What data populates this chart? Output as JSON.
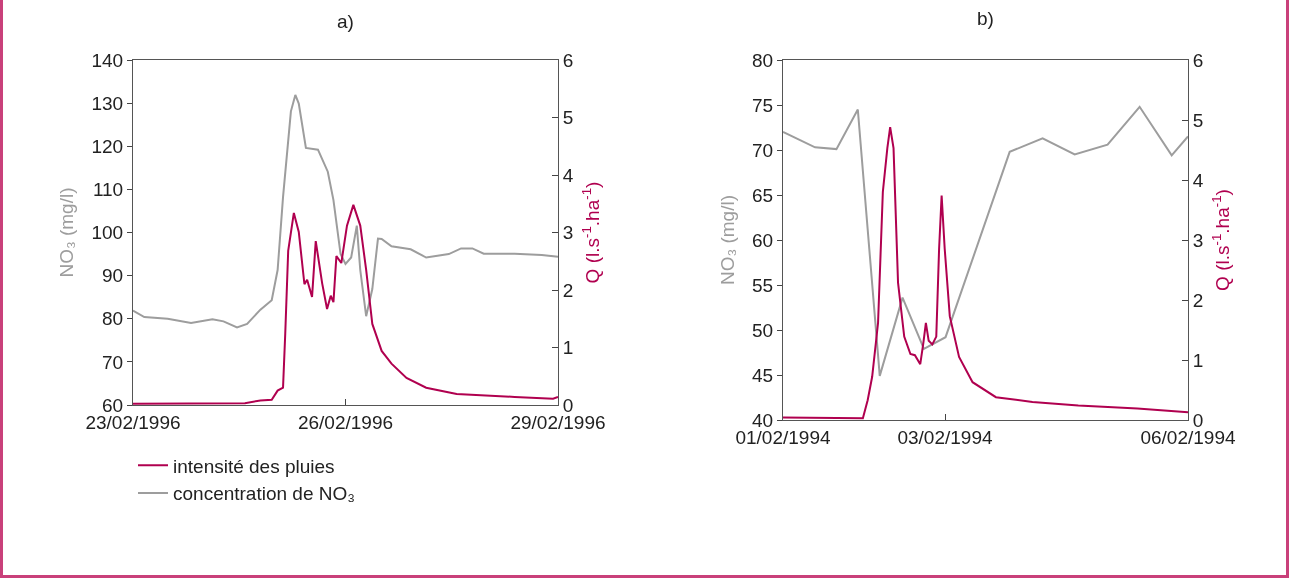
{
  "chart_data": [
    {
      "type": "line",
      "title": "a)",
      "ylabel": "NO₃ (mg/l)",
      "y2label": "Q (l.s$^{-1}$.ha$^{-1}$)",
      "legend": "bottom left",
      "grid": false,
      "marker": "none",
      "line_style": "solid",
      "xlim": [
        "1996-02-23",
        "1996-02-29"
      ],
      "xticks": [
        {
          "value": "1996-02-23",
          "label": "23/02/1996"
        },
        {
          "value": "1996-02-26",
          "label": "26/02/1996"
        },
        {
          "value": "1996-02-29",
          "label": "29/02/1996"
        }
      ],
      "ylim": [
        60,
        140
      ],
      "yticks": [
        60,
        70,
        80,
        90,
        100,
        110,
        120,
        130,
        140
      ],
      "y2lim": [
        0,
        6
      ],
      "y2ticks": [
        0,
        1,
        2,
        3,
        4,
        5,
        6
      ],
      "series": [
        {
          "name": "intensité des pluies",
          "color": "#b0004f",
          "axis": "y2",
          "x": [
            "1996-02-23T00:00",
            "1996-02-24T13:55",
            "1996-02-24T19:10",
            "1996-02-24T23:00",
            "1996-02-25T01:00",
            "1996-02-25T02:50",
            "1996-02-25T03:35",
            "1996-02-25T04:35",
            "1996-02-25T06:30",
            "1996-02-25T08:10",
            "1996-02-25T10:05",
            "1996-02-25T11:00",
            "1996-02-25T12:40",
            "1996-02-25T13:55",
            "1996-02-25T16:05",
            "1996-02-25T17:45",
            "1996-02-25T19:00",
            "1996-02-25T19:55",
            "1996-02-25T20:55",
            "1996-02-25T22:35",
            "1996-02-26T00:30",
            "1996-02-26T02:40",
            "1996-02-26T05:00",
            "1996-02-26T07:00",
            "1996-02-26T09:05",
            "1996-02-26T12:15",
            "1996-02-26T15:35",
            "1996-02-26T20:40",
            "1996-02-27T03:20",
            "1996-02-27T13:40",
            "1996-02-28T09:20",
            "1996-02-28T22:20",
            "1996-02-29T00:00"
          ],
          "values": [
            0.02,
            0.03,
            0.08,
            0.09,
            0.25,
            0.3,
            1.24,
            2.68,
            3.34,
            3.01,
            2.1,
            2.18,
            1.88,
            2.85,
            2.12,
            1.67,
            1.9,
            1.79,
            2.59,
            2.47,
            3.12,
            3.48,
            3.12,
            2.35,
            1.41,
            0.94,
            0.72,
            0.47,
            0.3,
            0.19,
            0.14,
            0.11,
            0.14
          ]
        },
        {
          "name": "concentration de NO₃",
          "color": "#9d9d9d",
          "x": [
            "1996-02-23T00:00",
            "1996-02-23T03:50",
            "1996-02-23T11:45",
            "1996-02-23T19:40",
            "1996-02-24T02:55",
            "1996-02-24T06:40",
            "1996-02-24T11:15",
            "1996-02-24T14:40",
            "1996-02-24T19:10",
            "1996-02-24T23:00",
            "1996-02-25T01:00",
            "1996-02-25T02:50",
            "1996-02-25T05:30",
            "1996-02-25T07:00",
            "1996-02-25T08:10",
            "1996-02-25T10:35",
            "1996-02-25T14:40",
            "1996-02-25T18:00",
            "1996-02-25T19:55",
            "1996-02-25T22:20",
            "1996-02-26T00:00",
            "1996-02-26T01:55",
            "1996-02-26T03:50",
            "1996-02-26T05:00",
            "1996-02-26T07:00",
            "1996-02-26T09:05",
            "1996-02-26T11:00",
            "1996-02-26T12:15",
            "1996-02-26T15:35",
            "1996-02-26T22:05",
            "1996-02-27T03:20",
            "1996-02-27T07:10",
            "1996-02-27T11:00",
            "1996-02-27T15:10",
            "1996-02-27T19:00",
            "1996-02-27T22:50",
            "1996-02-28T09:20",
            "1996-02-28T18:30",
            "1996-02-29T00:00"
          ],
          "values": [
            81.9,
            80.4,
            80,
            79,
            79.9,
            79.4,
            78,
            78.8,
            82.1,
            84.3,
            91.3,
            108.2,
            128.1,
            131.9,
            129.9,
            119.6,
            119.2,
            114.1,
            107.5,
            95,
            92.7,
            94.2,
            101.6,
            91.3,
            80.6,
            86.9,
            98.6,
            98.5,
            96.8,
            96.1,
            94.2,
            94.6,
            95,
            96.3,
            96.3,
            95.1,
            95.1,
            94.8,
            94.4
          ]
        }
      ]
    },
    {
      "type": "line",
      "title": "b)",
      "ylabel": "NO₃ (mg/l)",
      "y2label": "Q (l.s$^{-1}$.ha$^{-1}$)",
      "grid": false,
      "marker": "none",
      "line_style": "solid",
      "xlim": [
        "1994-02-01",
        "1994-02-06"
      ],
      "xticks": [
        {
          "value": "1994-02-01",
          "label": "01/02/1994"
        },
        {
          "value": "1994-02-03",
          "label": "03/02/1994"
        },
        {
          "value": "1994-02-06",
          "label": "06/02/1994"
        }
      ],
      "ylim": [
        40,
        80
      ],
      "yticks": [
        40,
        45,
        50,
        55,
        60,
        65,
        70,
        75,
        80
      ],
      "y2lim": [
        0,
        6
      ],
      "y2ticks": [
        0,
        1,
        2,
        3,
        4,
        5,
        6
      ],
      "series": [
        {
          "color": "#b0004f",
          "axis": "y2",
          "x": [
            "1994-02-01T00:00",
            "1994-02-01T23:40",
            "1994-02-02T01:05",
            "1994-02-02T02:25",
            "1994-02-02T04:10",
            "1994-02-02T05:35",
            "1994-02-02T06:55",
            "1994-02-02T07:45",
            "1994-02-02T08:45",
            "1994-02-02T10:05",
            "1994-02-02T11:55",
            "1994-02-02T13:45",
            "1994-02-02T15:05",
            "1994-02-02T16:40",
            "1994-02-02T17:35",
            "1994-02-02T18:20",
            "1994-02-02T19:10",
            "1994-02-02T20:15",
            "1994-02-02T21:25",
            "1994-02-02T22:15",
            "1994-02-02T23:00",
            "1994-02-02T23:55",
            "1994-02-03T01:25",
            "1994-02-03T04:10",
            "1994-02-03T08:10",
            "1994-02-03T15:05",
            "1994-02-04T01:55",
            "1994-02-04T15:30",
            "1994-02-05T09:00",
            "1994-02-06T00:00"
          ],
          "values": [
            0.04,
            0.03,
            0.33,
            0.72,
            1.62,
            3.8,
            4.53,
            4.88,
            4.53,
            2.29,
            1.39,
            1.1,
            1.08,
            0.93,
            1.28,
            1.62,
            1.32,
            1.26,
            1.39,
            2.85,
            3.74,
            2.85,
            1.73,
            1.05,
            0.63,
            0.38,
            0.3,
            0.24,
            0.19,
            0.13
          ]
        },
        {
          "color": "#9d9d9d",
          "x": [
            "1994-02-01T00:00",
            "1994-02-01T09:30",
            "1994-02-01T15:50",
            "1994-02-01T22:10",
            "1994-02-02T04:40",
            "1994-02-02T11:25",
            "1994-02-02T17:45",
            "1994-02-03T00:10",
            "1994-02-03T19:10",
            "1994-02-04T04:55",
            "1994-02-04T14:25",
            "1994-02-05T00:10",
            "1994-02-05T09:40",
            "1994-02-05T19:10",
            "1994-02-06T00:00"
          ],
          "values": [
            72,
            70.3,
            70.1,
            74.5,
            44.9,
            53.6,
            47.9,
            49.2,
            69.8,
            71.3,
            69.5,
            70.6,
            74.8,
            69.4,
            71.5
          ]
        }
      ]
    }
  ]
}
